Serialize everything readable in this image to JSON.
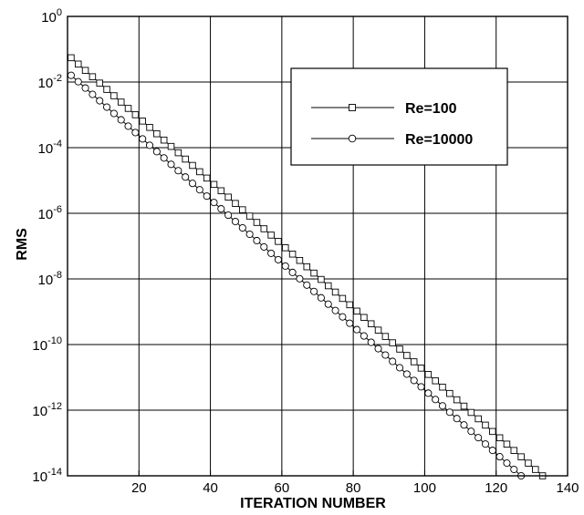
{
  "chart_data": {
    "type": "line",
    "title": "",
    "xlabel": "ITERATION NUMBER",
    "ylabel": "RMS",
    "xlim": [
      0,
      140
    ],
    "ylim": [
      1e-14,
      1
    ],
    "yscale": "log",
    "grid": true,
    "legend_position": "top-right",
    "x_ticks": [
      20,
      40,
      60,
      80,
      100,
      120,
      140
    ],
    "x_tick_labels": [
      "20",
      "40",
      "60",
      "80",
      "100",
      "120",
      "140"
    ],
    "y_ticks": [
      1,
      0.01,
      0.0001,
      1e-06,
      1e-08,
      1e-10,
      1e-12,
      1e-14
    ],
    "y_tick_labels": [
      {
        "base": "10",
        "exp": "0"
      },
      {
        "base": "10",
        "exp": "-2"
      },
      {
        "base": "10",
        "exp": "-4"
      },
      {
        "base": "10",
        "exp": "-6"
      },
      {
        "base": "10",
        "exp": "-8"
      },
      {
        "base": "10",
        "exp": "-10"
      },
      {
        "base": "10",
        "exp": "-12"
      },
      {
        "base": "10",
        "exp": "-14"
      }
    ],
    "series": [
      {
        "name": "Re=100",
        "marker": "square",
        "x": [
          1,
          133
        ],
        "y": [
          0.055,
          1e-14
        ],
        "marker_step": 2
      },
      {
        "name": "Re=10000",
        "marker": "circle",
        "x": [
          1,
          127
        ],
        "y": [
          0.016,
          1e-14
        ],
        "marker_step": 2
      }
    ],
    "colors": {
      "line": "#000000",
      "background": "#ffffff"
    }
  }
}
